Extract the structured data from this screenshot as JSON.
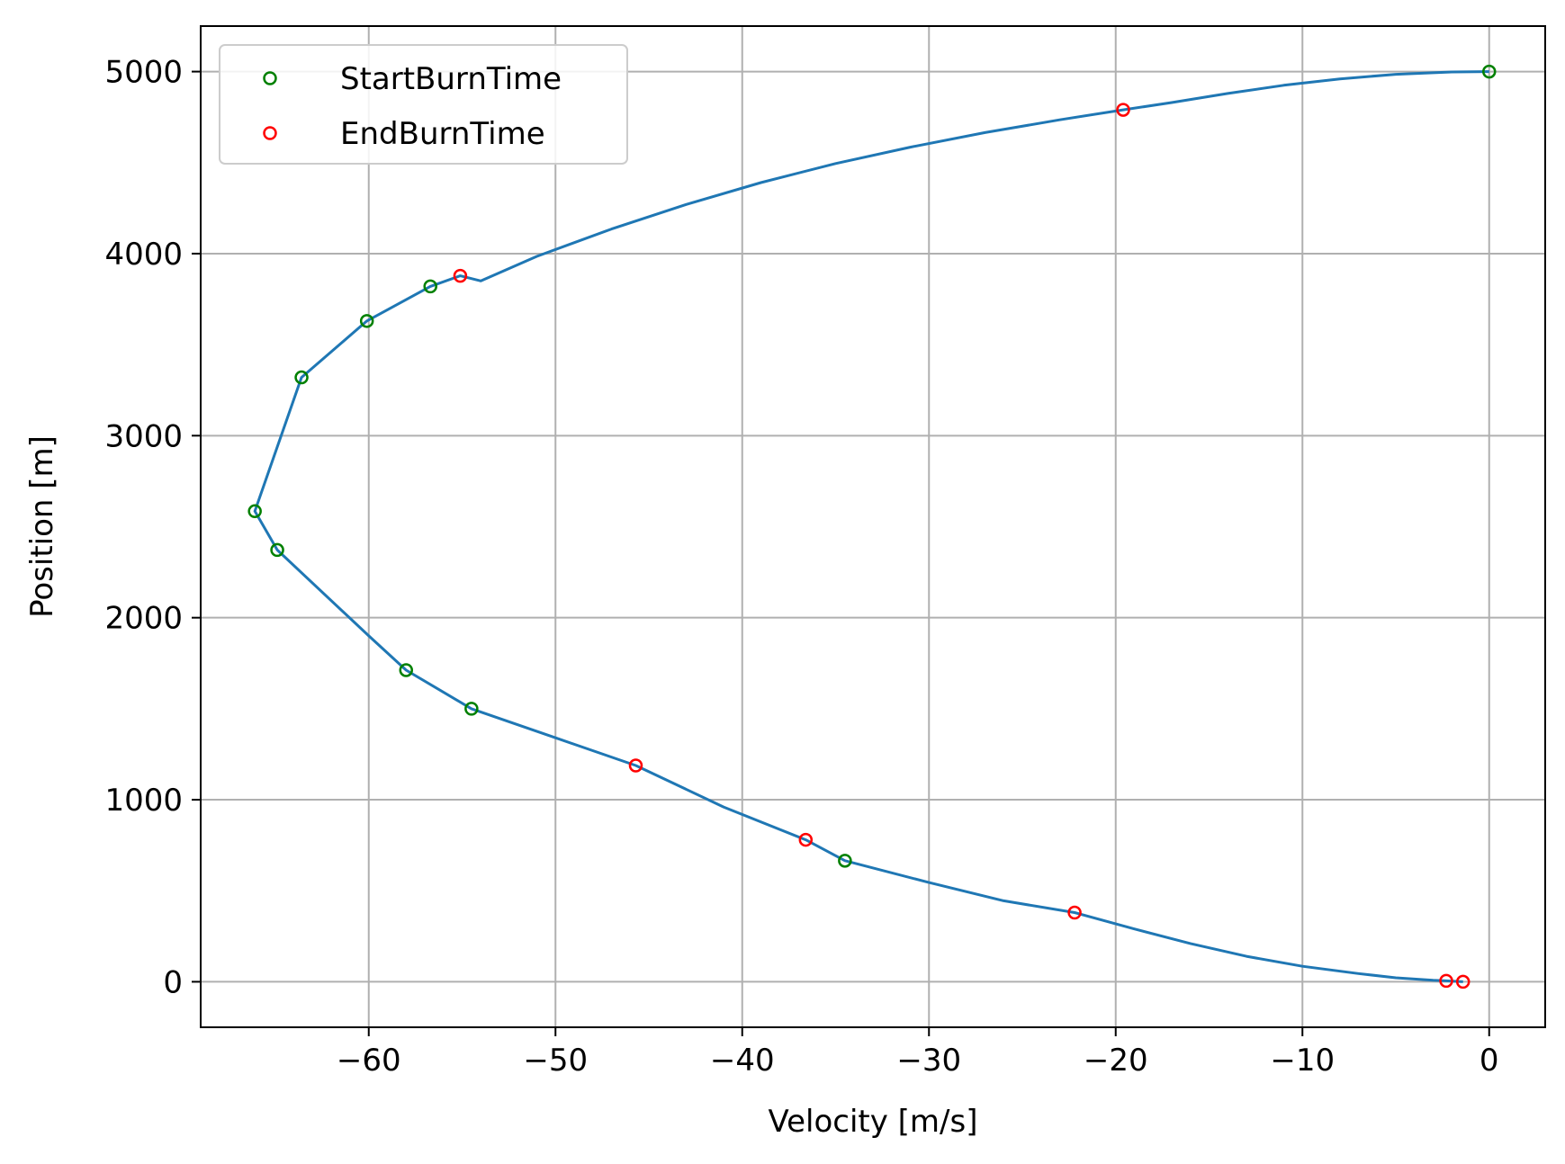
{
  "chart_data": {
    "type": "line",
    "title": "",
    "xlabel": "Velocity [m/s]",
    "ylabel": "Position [m]",
    "xlim": [
      -69,
      3
    ],
    "ylim": [
      -250,
      5250
    ],
    "xticks": [
      -60,
      -50,
      -40,
      -30,
      -20,
      -10,
      0
    ],
    "xtick_labels": [
      "−60",
      "−50",
      "−40",
      "−30",
      "−20",
      "−10",
      "0"
    ],
    "yticks": [
      0,
      1000,
      2000,
      3000,
      4000,
      5000
    ],
    "ytick_labels": [
      "0",
      "1000",
      "2000",
      "3000",
      "4000",
      "5000"
    ],
    "grid": true,
    "legend_position": "top-left",
    "trajectory": {
      "color": "#1f77b4",
      "x": [
        0,
        -2,
        -5,
        -8,
        -11,
        -14,
        -17,
        -19.6,
        -23,
        -27,
        -31,
        -35,
        -39,
        -43,
        -47,
        -51,
        -54,
        -55.1,
        -56.7,
        -60.1,
        -63.6,
        -66.1,
        -64.9,
        -60,
        -58.0,
        -54.5,
        -50,
        -45.7,
        -41,
        -36.6,
        -34.5,
        -30,
        -26,
        -22.2,
        -19,
        -16,
        -13,
        -10,
        -7,
        -5,
        -3,
        -2.3,
        -1.4
      ],
      "y": [
        5000,
        4998,
        4985,
        4960,
        4925,
        4880,
        4830,
        4790,
        4735,
        4665,
        4585,
        4495,
        4390,
        4270,
        4135,
        3985,
        3850,
        3878,
        3820,
        3630,
        3320,
        2585,
        2372,
        1900,
        1712,
        1500,
        1340,
        1188,
        960,
        780,
        665,
        545,
        445,
        380,
        290,
        210,
        140,
        85,
        45,
        22,
        8,
        5,
        0
      ]
    },
    "series": [
      {
        "name": "StartBurnTime",
        "color": "#008000",
        "x": [
          0,
          -56.7,
          -60.1,
          -63.6,
          -66.1,
          -64.9,
          -58.0,
          -54.5,
          -34.5
        ],
        "y": [
          5000,
          3820,
          3630,
          3320,
          2585,
          2372,
          1712,
          1500,
          665
        ]
      },
      {
        "name": "EndBurnTime",
        "color": "#ff0000",
        "x": [
          -19.6,
          -55.1,
          -45.7,
          -36.6,
          -22.2,
          -2.3,
          -1.4
        ],
        "y": [
          4790,
          3878,
          1188,
          780,
          380,
          5,
          0
        ]
      }
    ]
  }
}
